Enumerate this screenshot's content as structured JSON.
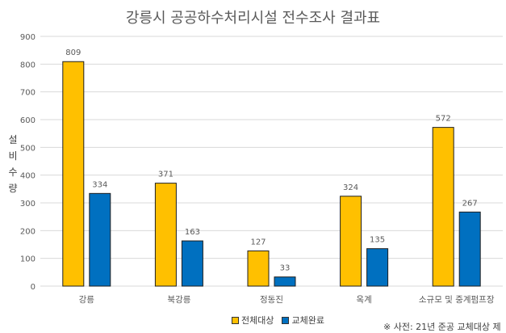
{
  "chart_data": {
    "type": "bar",
    "title": "강릉시 공공하수처리시설 전수조사 결과표",
    "ylabel": "설비수량",
    "xlabel": "",
    "categories": [
      "강릉",
      "북강릉",
      "정동진",
      "옥계",
      "소규모 및 중계펌프장"
    ],
    "series": [
      {
        "name": "전체대상",
        "values": [
          809,
          371,
          127,
          324,
          572
        ],
        "color": "#FFC000"
      },
      {
        "name": "교체완료",
        "values": [
          334,
          163,
          33,
          135,
          267
        ],
        "color": "#0070C0"
      }
    ],
    "ylim": [
      0,
      900
    ],
    "yticks": [
      0,
      100,
      200,
      300,
      400,
      500,
      600,
      700,
      800,
      900
    ],
    "grid": true,
    "legend": "bottom",
    "data_labels": true
  },
  "note": "※ 사전: 21년 준공 교체대상 제"
}
